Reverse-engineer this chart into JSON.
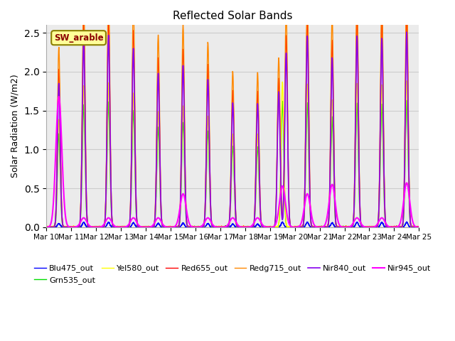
{
  "title": "Reflected Solar Bands",
  "ylabel": "Solar Radiation (W/m2)",
  "ylim": [
    0,
    2.6
  ],
  "annotation_text": "SW_arable",
  "annotation_color": "#8B0000",
  "annotation_bg": "#FFFF99",
  "annotation_border": "#8B8000",
  "series_order": [
    "Blu475_out",
    "Grn535_out",
    "Yel580_out",
    "Red655_out",
    "Redg715_out",
    "Nir840_out",
    "Nir945_out"
  ],
  "series_colors": {
    "Blu475_out": "#0000FF",
    "Grn535_out": "#00DD00",
    "Yel580_out": "#FFFF00",
    "Red655_out": "#FF0000",
    "Redg715_out": "#FF8800",
    "Nir840_out": "#8800EE",
    "Nir945_out": "#FF00FF"
  },
  "series_lw": {
    "Blu475_out": 1.0,
    "Grn535_out": 1.0,
    "Yel580_out": 1.0,
    "Red655_out": 1.0,
    "Redg715_out": 1.0,
    "Nir840_out": 1.2,
    "Nir945_out": 1.5
  },
  "n_days": 15,
  "start_day": 10,
  "pts_per_day": 288,
  "grid_color": "#CCCCCC",
  "plot_bg_color": "#EBEBEB",
  "peak_scales": {
    "Blu475_out": 0.03,
    "Grn535_out": 0.65,
    "Yel580_out": 0.75,
    "Red655_out": 1.1,
    "Redg715_out": 1.25,
    "Nir840_out": 1.9,
    "Nir945_out": 0.55
  },
  "day_peak_heights": [
    1.85,
    2.42,
    2.47,
    2.3,
    1.98,
    2.08,
    1.9,
    1.6,
    1.59,
    2.49,
    2.46,
    2.18,
    2.46,
    2.43,
    2.51
  ],
  "nir945_peaks": [
    1.68,
    0.12,
    0.12,
    0.12,
    0.12,
    0.43,
    0.12,
    0.12,
    0.12,
    0.53,
    0.43,
    0.55,
    0.12,
    0.12,
    0.57
  ]
}
